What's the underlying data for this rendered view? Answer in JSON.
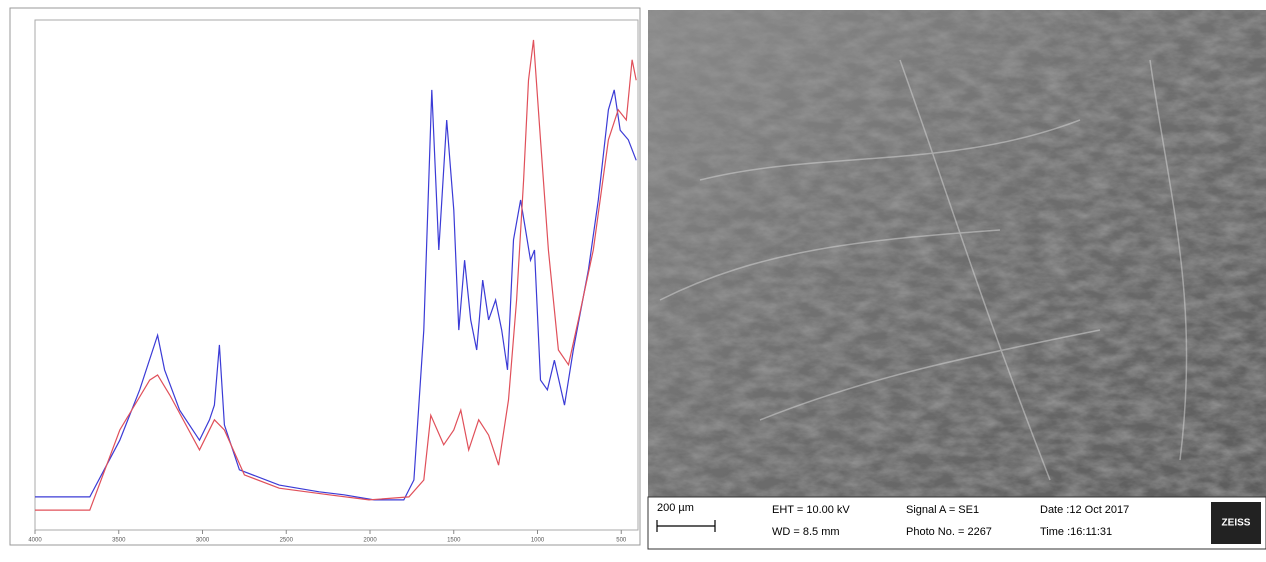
{
  "chart_data": {
    "type": "line",
    "xlim": [
      4000,
      400
    ],
    "ylim": [
      0,
      1
    ],
    "xticks": [
      4000,
      3500,
      3000,
      2500,
      2000,
      1500,
      1000,
      500
    ],
    "series": [
      {
        "color": "#3b3bd6",
        "x": [
          4000,
          3673,
          3494,
          3375,
          3268,
          3226,
          3137,
          3018,
          2958,
          2929,
          2899,
          2869,
          2780,
          2542,
          2304,
          2155,
          1976,
          1798,
          1738,
          1679,
          1631,
          1589,
          1542,
          1500,
          1470,
          1435,
          1399,
          1363,
          1327,
          1292,
          1250,
          1214,
          1179,
          1143,
          1101,
          1071,
          1042,
          1018,
          982,
          941,
          899,
          839,
          786,
          696,
          637,
          577,
          542,
          506,
          458,
          411
        ],
        "values": [
          0.065,
          0.065,
          0.176,
          0.275,
          0.382,
          0.314,
          0.235,
          0.176,
          0.216,
          0.245,
          0.363,
          0.206,
          0.118,
          0.088,
          0.075,
          0.069,
          0.059,
          0.059,
          0.098,
          0.392,
          0.863,
          0.549,
          0.804,
          0.627,
          0.392,
          0.529,
          0.412,
          0.353,
          0.49,
          0.412,
          0.451,
          0.392,
          0.314,
          0.569,
          0.647,
          0.588,
          0.529,
          0.549,
          0.294,
          0.275,
          0.333,
          0.245,
          0.353,
          0.51,
          0.647,
          0.824,
          0.863,
          0.784,
          0.765,
          0.725
        ]
      },
      {
        "color": "#e0505a",
        "x": [
          4000,
          3673,
          3494,
          3315,
          3268,
          3196,
          3018,
          2929,
          2869,
          2750,
          2542,
          2244,
          2006,
          1768,
          1679,
          1637,
          1560,
          1500,
          1458,
          1411,
          1351,
          1292,
          1232,
          1173,
          1125,
          1083,
          1054,
          1024,
          982,
          935,
          875,
          815,
          756,
          667,
          577,
          518,
          470,
          435,
          411
        ],
        "values": [
          0.039,
          0.039,
          0.196,
          0.294,
          0.304,
          0.265,
          0.157,
          0.216,
          0.196,
          0.108,
          0.082,
          0.069,
          0.059,
          0.065,
          0.098,
          0.225,
          0.167,
          0.196,
          0.235,
          0.157,
          0.216,
          0.186,
          0.127,
          0.255,
          0.451,
          0.686,
          0.882,
          0.961,
          0.765,
          0.549,
          0.353,
          0.324,
          0.412,
          0.549,
          0.765,
          0.824,
          0.804,
          0.922,
          0.882
        ]
      }
    ]
  },
  "micrograph": {
    "scale_bar": "200 µm",
    "eht": "EHT = 10.00 kV",
    "wd": "WD = 8.5 mm",
    "signal": "Signal A = SE1",
    "photo": "Photo No. = 2267",
    "date": "Date :12 Oct 2017",
    "time": "Time :16:11:31",
    "logo": "ZEISS"
  }
}
